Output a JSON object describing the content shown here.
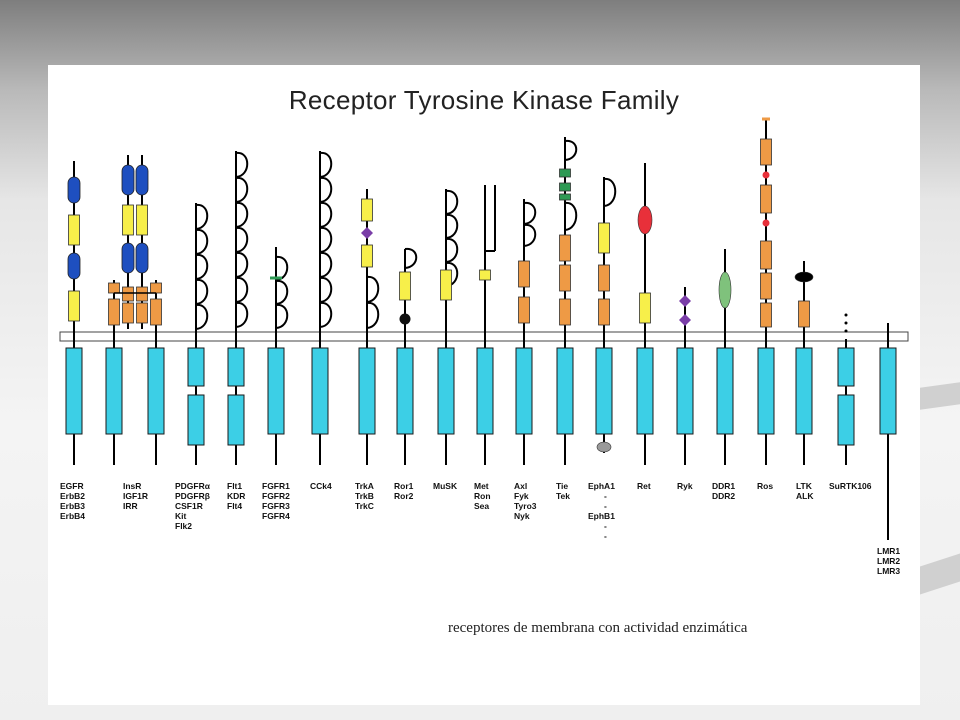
{
  "title": "Receptor Tyrosine Kinase Family",
  "caption": "receptores de membrana con actividad enzimática",
  "colors": {
    "kinase": "#3ccfe6",
    "membrane": "#ffffff",
    "ig_blue": "#1e4fc0",
    "yellow_box": "#f7ef4a",
    "orange_box": "#ee9a45",
    "red": "#e8303a",
    "green": "#2e9a54",
    "purple": "#7a3ea8",
    "green_oval": "#7fc27c",
    "black": "#000000"
  },
  "families": [
    {
      "id": "egfr",
      "labels": [
        "EGFR",
        "ErbB2",
        "ErbB3",
        "ErbB4"
      ]
    },
    {
      "id": "insr",
      "labels": [
        "InsR",
        "IGF1R",
        "IRR"
      ]
    },
    {
      "id": "pdgfr",
      "labels": [
        "PDGFRα",
        "PDGFRβ",
        "CSF1R",
        "Kit",
        "Flk2"
      ]
    },
    {
      "id": "flt",
      "labels": [
        "Flt1",
        "KDR",
        "Flt4"
      ]
    },
    {
      "id": "fgfr",
      "labels": [
        "FGFR1",
        "FGFR2",
        "FGFR3",
        "FGFR4"
      ]
    },
    {
      "id": "cck4",
      "labels": [
        "CCk4"
      ]
    },
    {
      "id": "trk",
      "labels": [
        "TrkA",
        "TrkB",
        "TrkC"
      ]
    },
    {
      "id": "ror",
      "labels": [
        "Ror1",
        "Ror2"
      ]
    },
    {
      "id": "musk",
      "labels": [
        "MuSK"
      ]
    },
    {
      "id": "met",
      "labels": [
        "Met",
        "Ron",
        "Sea"
      ]
    },
    {
      "id": "axl",
      "labels": [
        "Axl",
        "Fyk",
        "Tyro3",
        "Nyk"
      ]
    },
    {
      "id": "tie",
      "labels": [
        "Tie",
        "Tek"
      ]
    },
    {
      "id": "eph",
      "labels": [
        "EphA1",
        "-",
        "-",
        "EphB1",
        "-",
        "-"
      ]
    },
    {
      "id": "ret",
      "labels": [
        "Ret"
      ]
    },
    {
      "id": "ryk",
      "labels": [
        "Ryk"
      ]
    },
    {
      "id": "ddr",
      "labels": [
        "DDR1",
        "DDR2"
      ]
    },
    {
      "id": "ros",
      "labels": [
        "Ros"
      ]
    },
    {
      "id": "ltk",
      "labels": [
        "LTK",
        "ALK"
      ]
    },
    {
      "id": "surtk",
      "labels": [
        "SuRTK106"
      ]
    },
    {
      "id": "lmr",
      "labels": [
        "LMR1",
        "LMR2",
        "LMR3"
      ]
    }
  ]
}
